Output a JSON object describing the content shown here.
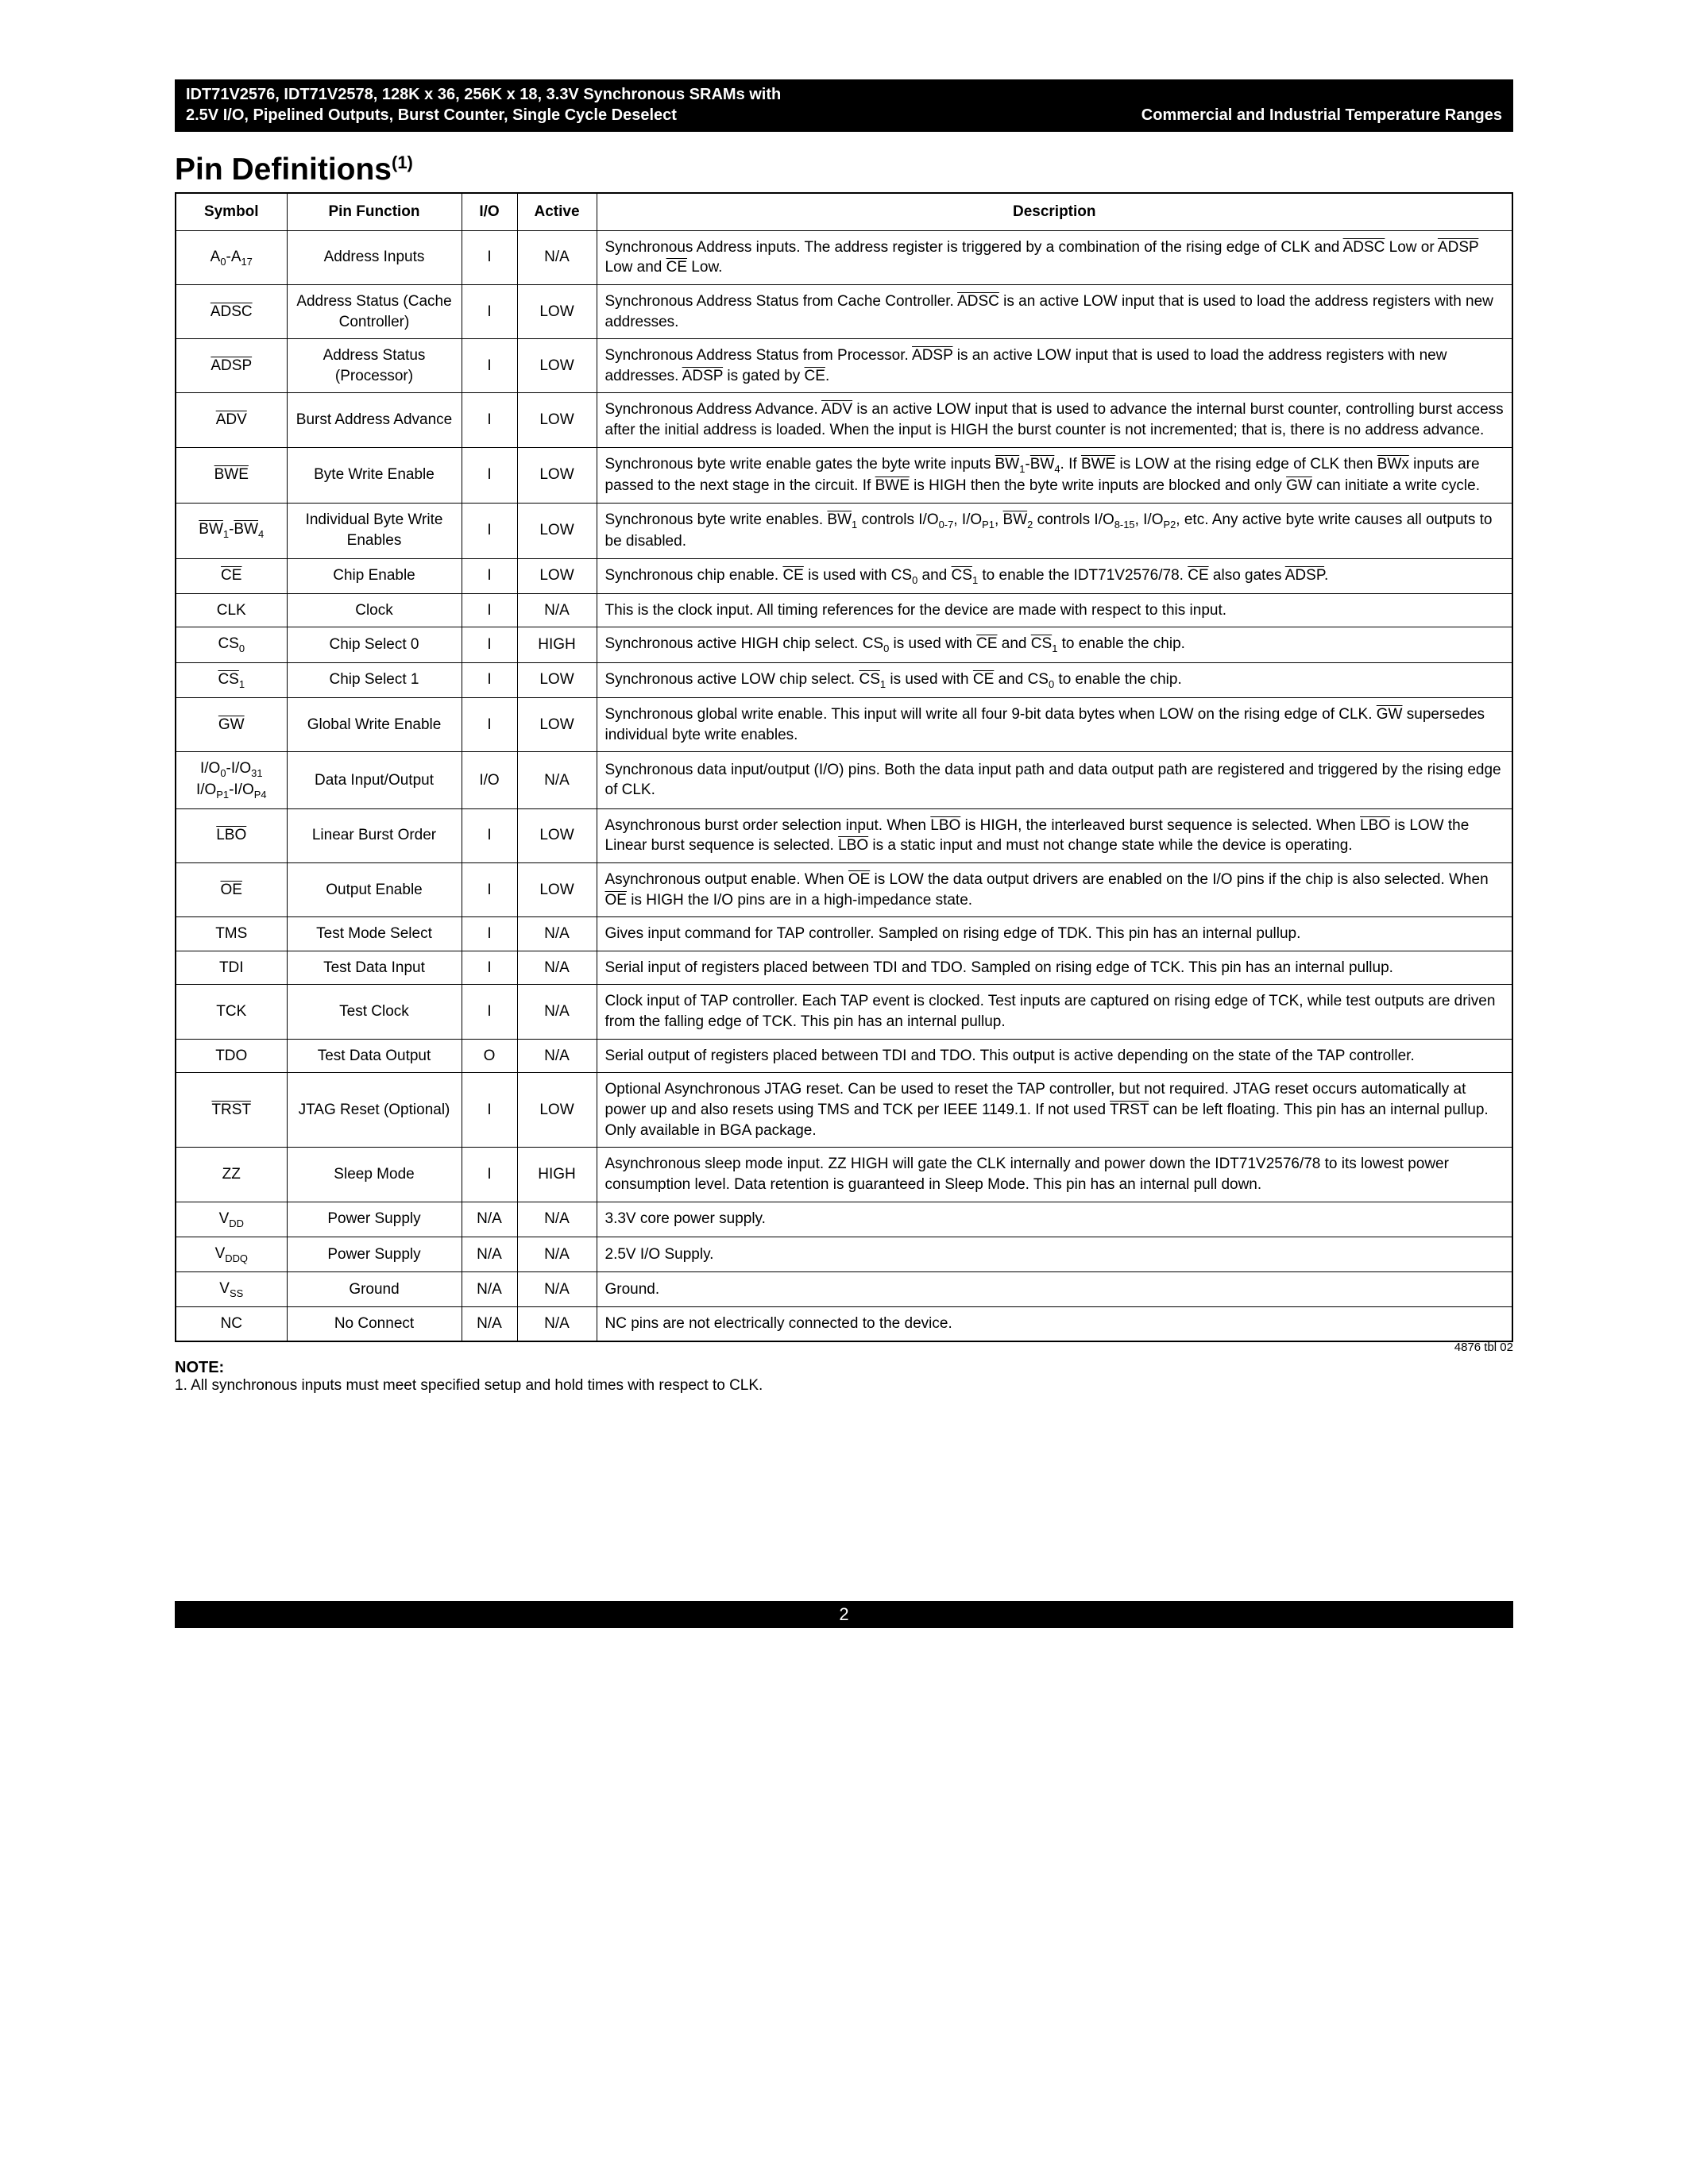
{
  "header": {
    "line1": "IDT71V2576, IDT71V2578, 128K x 36, 256K x 18, 3.3V Synchronous SRAMs with",
    "line2_left": "2.5V I/O, Pipelined Outputs, Burst Counter, Single Cycle Deselect",
    "line2_right": "Commercial and Industrial Temperature Ranges"
  },
  "section_title_main": "Pin Definitions",
  "section_title_sup": "(1)",
  "columns": {
    "symbol": "Symbol",
    "pin_function": "Pin Function",
    "io": "I/O",
    "active": "Active",
    "description": "Description"
  },
  "rows": [
    {
      "symbol_html": "A<span class='sub'>0</span>-A<span class='sub'>17</span>",
      "func": "Address Inputs",
      "io": "I",
      "active": "N/A",
      "desc_html": "Synchronous Address inputs. The address register is triggered by a combination of the rising edge of CLK and <span class='ov'>ADSC</span> Low or <span class='ov'>ADSP</span> Low and <span class='ov'>CE</span> Low."
    },
    {
      "symbol_html": "<span class='ov'>ADSC</span>",
      "func": "Address Status (Cache Controller)",
      "io": "I",
      "active": "LOW",
      "desc_html": "Synchronous Address Status from Cache Controller. <span class='ov'>ADSC</span> is an active LOW input that is used to load the address registers with new addresses."
    },
    {
      "symbol_html": "<span class='ov'>ADSP</span>",
      "func": "Address Status (Processor)",
      "io": "I",
      "active": "LOW",
      "desc_html": "Synchronous Address Status from Processor. <span class='ov'>ADSP</span> is an active LOW input that is used to load the address registers with new addresses. <span class='ov'>ADSP</span> is gated by <span class='ov'>CE</span>."
    },
    {
      "symbol_html": "<span class='ov'>ADV</span>",
      "func": "Burst Address Advance",
      "io": "I",
      "active": "LOW",
      "desc_html": "Synchronous Address Advance. <span class='ov'>ADV</span> is an active LOW input that is used to advance the internal burst counter, controlling burst access after the initial address is loaded. When the input is HIGH the burst counter is not incremented; that is, there is no address advance."
    },
    {
      "symbol_html": "<span class='ov'>BWE</span>",
      "func": "Byte Write Enable",
      "io": "I",
      "active": "LOW",
      "desc_html": "Synchronous byte write enable gates the byte write inputs <span class='ov'>BW</span><span class='sub'>1</span>-<span class='ov'>BW</span><span class='sub'>4</span>. If <span class='ov'>BWE</span> is LOW at the rising edge of CLK then <span class='ov'>BWx</span> inputs are passed to the next stage in the circuit. If <span class='ov'>BWE</span> is HIGH then the byte write inputs are blocked and only <span class='ov'>GW</span> can initiate a write cycle."
    },
    {
      "symbol_html": "<span class='ov'>BW</span><span class='sub'>1</span>-<span class='ov'>BW</span><span class='sub'>4</span>",
      "func": "Individual Byte Write Enables",
      "io": "I",
      "active": "LOW",
      "desc_html": "Synchronous byte write enables. <span class='ov'>BW</span><span class='sub'>1</span> controls I/O<span class='sub'>0-7</span>, I/O<span class='sub'>P1</span>, <span class='ov'>BW</span><span class='sub'>2</span> controls I/O<span class='sub'>8-15</span>, I/O<span class='sub'>P2</span>, etc. Any active byte write causes all outputs to be disabled."
    },
    {
      "symbol_html": "<span class='ov'>CE</span>",
      "func": "Chip Enable",
      "io": "I",
      "active": "LOW",
      "desc_html": "Synchronous chip enable. <span class='ov'>CE</span> is used with CS<span class='sub'>0</span> and <span class='ov'>CS</span><span class='sub'>1</span> to enable the IDT71V2576/78. <span class='ov'>CE</span> also gates <span class='ov'>ADSP</span>."
    },
    {
      "symbol_html": "CLK",
      "func": "Clock",
      "io": "I",
      "active": "N/A",
      "desc_html": "This is the clock input. All timing references for the device are made with respect to this input."
    },
    {
      "symbol_html": "CS<span class='sub'>0</span>",
      "func": "Chip Select 0",
      "io": "I",
      "active": "HIGH",
      "desc_html": "Synchronous active HIGH chip select. CS<span class='sub'>0</span> is used with <span class='ov'>CE</span> and <span class='ov'>CS</span><span class='sub'>1</span> to enable the chip."
    },
    {
      "symbol_html": "<span class='ov'>CS</span><span class='sub'>1</span>",
      "func": "Chip Select 1",
      "io": "I",
      "active": "LOW",
      "desc_html": "Synchronous active LOW chip select. <span class='ov'>CS</span><span class='sub'>1</span> is used with <span class='ov'>CE</span> and CS<span class='sub'>0</span> to enable the chip."
    },
    {
      "symbol_html": "<span class='ov'>GW</span>",
      "func": "Global Write Enable",
      "io": "I",
      "active": "LOW",
      "desc_html": "Synchronous global write enable. This input will write all four 9-bit data bytes when LOW on the rising edge of CLK. <span class='ov'>GW</span> supersedes individual byte write enables."
    },
    {
      "symbol_html": "I/O<span class='sub'>0</span>-I/O<span class='sub'>31</span><br>I/O<span class='sub'>P1</span>-I/O<span class='sub'>P4</span>",
      "func": "Data Input/Output",
      "io": "I/O",
      "active": "N/A",
      "desc_html": "Synchronous data input/output (I/O) pins. Both the data input path and data output path are registered and triggered by the rising edge of CLK."
    },
    {
      "symbol_html": "<span class='ov'>LBO</span>",
      "func": "Linear Burst Order",
      "io": "I",
      "active": "LOW",
      "desc_html": "Asynchronous burst order selection input. When <span class='ov'>LBO</span> is HIGH, the interleaved burst sequence is selected. When <span class='ov'>LBO</span> is LOW the Linear burst sequence is selected. <span class='ov'>LBO</span> is a static input and must not change state while the device is operating."
    },
    {
      "symbol_html": "<span class='ov'>OE</span>",
      "func": "Output Enable",
      "io": "I",
      "active": "LOW",
      "desc_html": "Asynchronous output enable. When <span class='ov'>OE</span> is LOW the data output drivers are enabled on the I/O pins if the chip is also selected. When <span class='ov'>OE</span> is HIGH the I/O pins are in a high-impedance state."
    },
    {
      "symbol_html": "TMS",
      "func": "Test Mode Select",
      "io": "I",
      "active": "N/A",
      "desc_html": "Gives input command for TAP controller. Sampled on rising edge of TDK. This pin has an internal pullup."
    },
    {
      "symbol_html": "TDI",
      "func": "Test Data Input",
      "io": "I",
      "active": "N/A",
      "desc_html": "Serial input of registers placed between TDI and TDO. Sampled on rising edge of TCK. This pin has an internal pullup."
    },
    {
      "symbol_html": "TCK",
      "func": "Test Clock",
      "io": "I",
      "active": "N/A",
      "desc_html": "Clock input of TAP controller. Each TAP event is clocked. Test inputs are captured on rising edge of TCK, while test outputs are driven from the falling edge of TCK. This pin has an internal pullup."
    },
    {
      "symbol_html": "TDO",
      "func": "Test Data Output",
      "io": "O",
      "active": "N/A",
      "desc_html": "Serial output of registers placed between TDI and TDO. This output is active depending on the state of the TAP controller."
    },
    {
      "symbol_html": "<span class='ov'>TRST</span>",
      "func": "JTAG Reset (Optional)",
      "io": "I",
      "active": "LOW",
      "desc_html": "Optional Asynchronous JTAG reset. Can be used to reset the TAP controller, but not required. JTAG reset occurs automatically at power up and also resets using TMS and TCK per IEEE 1149.1. If not used <span class='ov'>TRST</span> can be left floating. This pin has an internal pullup. Only available in BGA package."
    },
    {
      "symbol_html": "ZZ",
      "func": "Sleep Mode",
      "io": "I",
      "active": "HIGH",
      "desc_html": "Asynchronous sleep mode input. ZZ HIGH will gate the CLK internally and power down the IDT71V2576/78 to its lowest power consumption level. Data retention is guaranteed in Sleep Mode. This pin has an internal pull down."
    },
    {
      "symbol_html": "V<span class='sub'>DD</span>",
      "func": "Power Supply",
      "io": "N/A",
      "active": "N/A",
      "desc_html": "3.3V core power supply."
    },
    {
      "symbol_html": "V<span class='sub'>DDQ</span>",
      "func": "Power Supply",
      "io": "N/A",
      "active": "N/A",
      "desc_html": "2.5V I/O Supply."
    },
    {
      "symbol_html": "V<span class='sub'>SS</span>",
      "func": "Ground",
      "io": "N/A",
      "active": "N/A",
      "desc_html": "Ground."
    },
    {
      "symbol_html": "NC",
      "func": "No Connect",
      "io": "N/A",
      "active": "N/A",
      "desc_html": "NC pins are not electrically connected to the device."
    }
  ],
  "doc_id": "4876 tbl 02",
  "note_head": "NOTE:",
  "note_text": "1.  All synchronous inputs must meet specified setup and hold times with respect to CLK.",
  "page_number": "2"
}
